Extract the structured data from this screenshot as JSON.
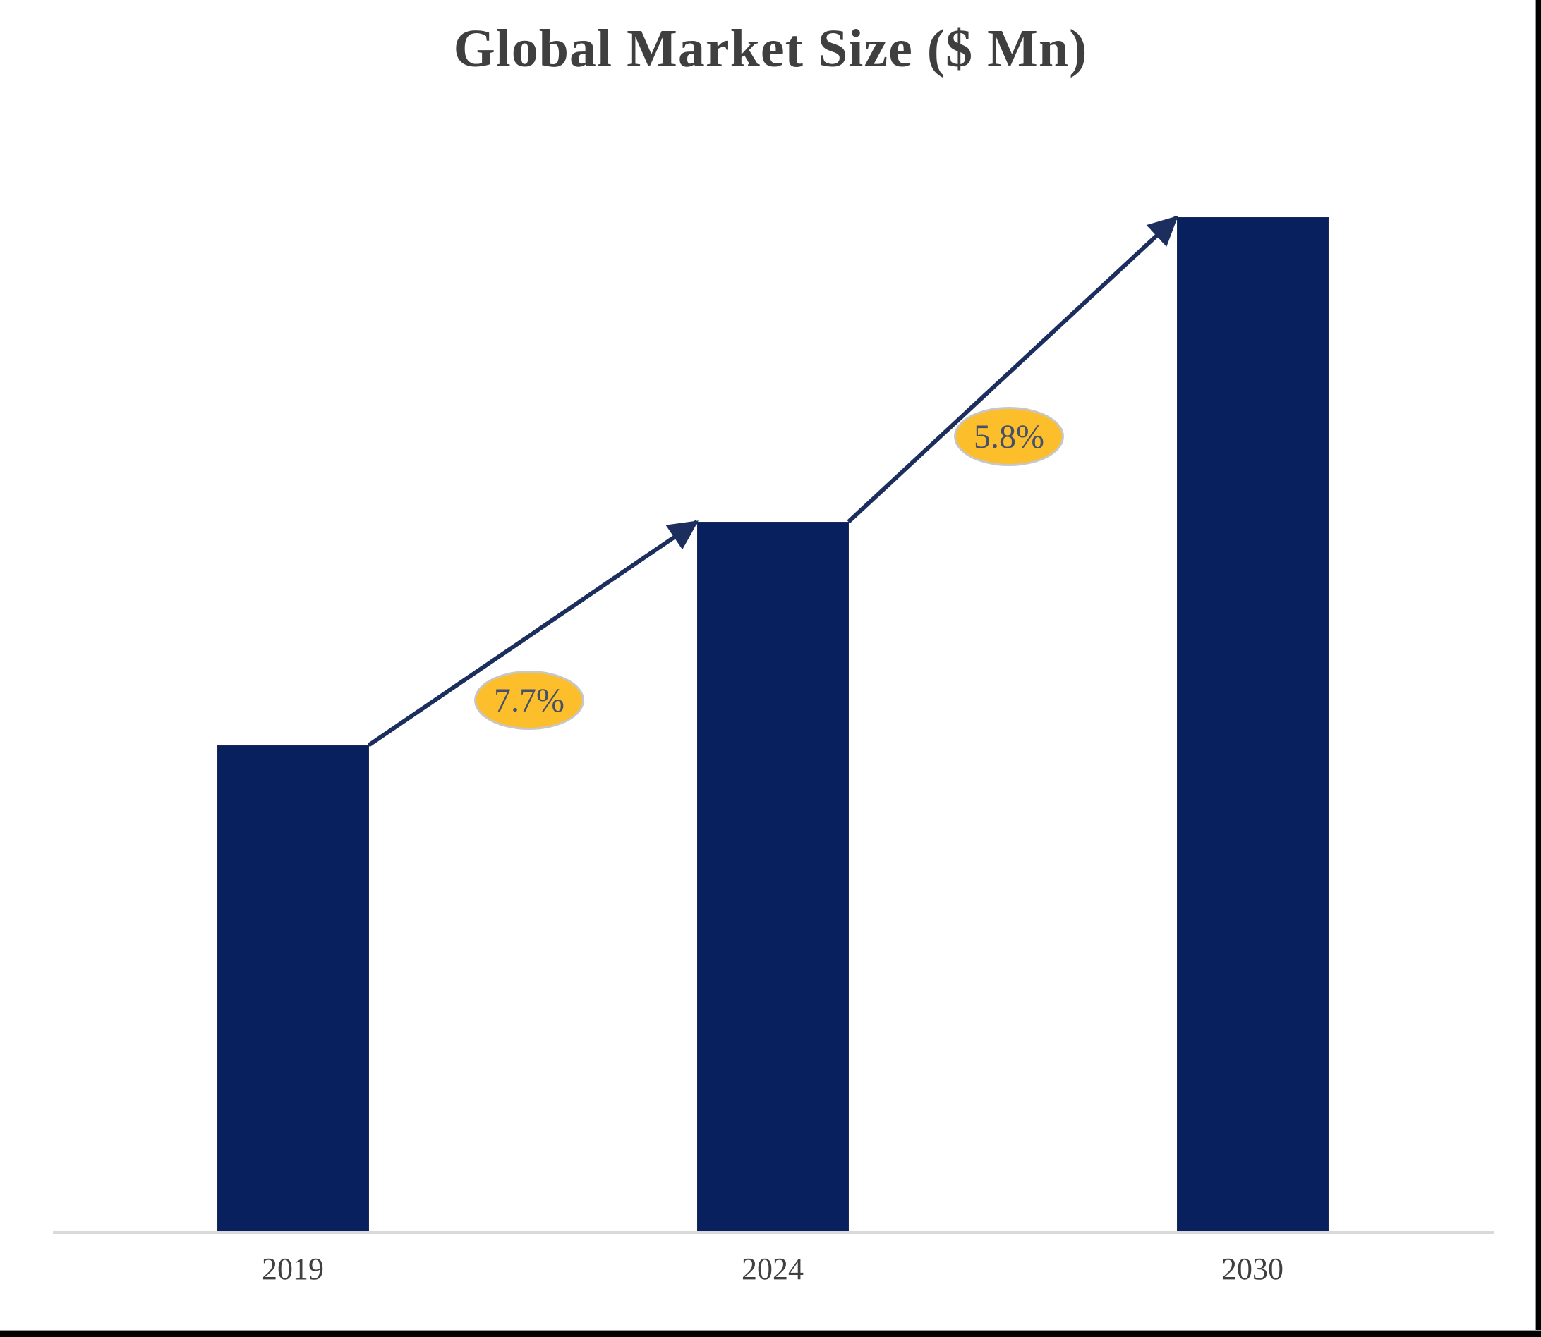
{
  "chart_data": {
    "type": "bar",
    "title": "Global Market Size ($ Mn)",
    "categories": [
      "2019",
      "2024",
      "2030"
    ],
    "values_relative": [
      0.48,
      0.7,
      1.0
    ],
    "estimated_index_2019_100": [
      100,
      145,
      209
    ],
    "series_note": "bar heights are relative; no y-axis or value labels shown",
    "growth_annotations": [
      {
        "from": "2019",
        "to": "2024",
        "label": "7.7%"
      },
      {
        "from": "2024",
        "to": "2030",
        "label": "5.8%"
      }
    ],
    "xlabel": "",
    "ylabel": "",
    "y_axis_visible": false,
    "gridlines": false,
    "legend_position": "none",
    "colors": {
      "bar": "#08215e",
      "arrow": "#1c2e5e",
      "annotation_fill": "#fcbe2b",
      "annotation_border": "#c7c7c7",
      "annotation_text": "#46506b",
      "axis_line": "#d9d9d9",
      "category_label": "#404040",
      "title": "#3f3f3f"
    }
  }
}
